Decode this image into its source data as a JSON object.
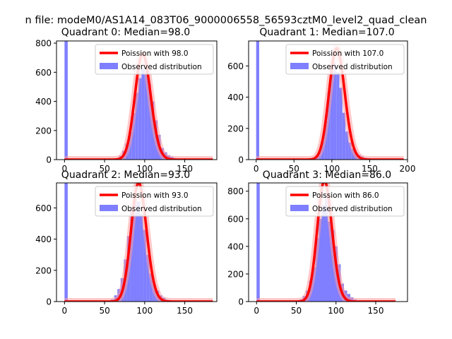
{
  "suptitle": "n file: modeM0/AS1A14_083T06_9000006558_56593cztM0_level2_quad_clean",
  "colors": {
    "hist": "#7f7fff",
    "line": "#ff0000",
    "lineHalo": "#ff9a9a",
    "axis": "#000000"
  },
  "chart_data": [
    {
      "type": "bar",
      "title": "Quadrant 0: Median=98.0",
      "median": 98.0,
      "xlim": [
        -10,
        190
      ],
      "ylim": [
        0,
        815
      ],
      "xticks": [
        0,
        50,
        100,
        150
      ],
      "yticks": [
        0,
        200,
        400,
        600,
        800
      ],
      "legend": [
        "Poission with 98.0",
        "Observed distribution"
      ],
      "legend_loc": "upper right",
      "bin_width": 4,
      "hist_x": [
        0,
        60,
        64,
        68,
        72,
        76,
        80,
        84,
        88,
        92,
        96,
        100,
        104,
        108,
        112,
        116,
        120,
        124,
        128,
        132,
        136,
        140,
        144
      ],
      "hist_y": [
        815,
        5,
        10,
        25,
        60,
        110,
        190,
        320,
        460,
        560,
        630,
        610,
        520,
        400,
        270,
        170,
        80,
        50,
        30,
        20,
        10,
        5,
        2
      ],
      "poisson": {
        "mean": 98.0,
        "x_range": [
          0,
          185
        ]
      }
    },
    {
      "type": "bar",
      "title": "Quadrant 1: Median=107.0",
      "median": 107.0,
      "xlim": [
        -10,
        200
      ],
      "ylim": [
        0,
        760
      ],
      "xticks": [
        0,
        50,
        100,
        150,
        200
      ],
      "yticks": [
        0,
        200,
        400,
        600
      ],
      "legend": [
        "Poission with 107.0",
        "Observed distribution"
      ],
      "legend_loc": "upper right",
      "bin_width": 4,
      "hist_x": [
        0,
        70,
        74,
        78,
        82,
        86,
        90,
        94,
        98,
        102,
        106,
        110,
        114,
        118,
        122,
        126,
        130,
        134,
        138,
        142,
        146,
        150,
        154
      ],
      "hist_y": [
        760,
        5,
        12,
        25,
        55,
        120,
        250,
        430,
        560,
        620,
        560,
        460,
        300,
        180,
        110,
        70,
        40,
        30,
        20,
        12,
        8,
        4,
        2
      ],
      "poisson": {
        "mean": 107.0,
        "x_range": [
          0,
          195
        ]
      }
    },
    {
      "type": "bar",
      "title": "Quadrant 2: Median=93.0",
      "median": 93.0,
      "xlim": [
        -10,
        190
      ],
      "ylim": [
        0,
        760
      ],
      "xticks": [
        0,
        50,
        100,
        150
      ],
      "yticks": [
        0,
        200,
        400,
        600
      ],
      "legend": [
        "Poission with 93.0",
        "Observed distribution"
      ],
      "legend_loc": "upper right",
      "bin_width": 4,
      "hist_x": [
        0,
        54,
        58,
        62,
        66,
        70,
        74,
        78,
        82,
        86,
        90,
        94,
        98,
        102,
        106,
        110,
        114,
        118,
        122,
        126,
        130,
        134,
        138
      ],
      "hist_y": [
        760,
        5,
        15,
        40,
        80,
        150,
        270,
        420,
        600,
        660,
        640,
        560,
        460,
        300,
        180,
        110,
        70,
        40,
        25,
        12,
        8,
        4,
        2
      ],
      "poisson": {
        "mean": 93.0,
        "x_range": [
          0,
          185
        ]
      }
    },
    {
      "type": "bar",
      "title": "Quadrant 3: Median=86.0",
      "median": 86.0,
      "xlim": [
        -10,
        190
      ],
      "ylim": [
        0,
        860
      ],
      "xticks": [
        0,
        50,
        100,
        150
      ],
      "yticks": [
        0,
        200,
        400,
        600,
        800
      ],
      "legend": [
        "Poission with 86.0",
        "Observed distribution"
      ],
      "legend_loc": "upper right",
      "bin_width": 4,
      "hist_x": [
        0,
        50,
        54,
        58,
        62,
        66,
        70,
        74,
        78,
        82,
        86,
        90,
        94,
        98,
        102,
        106,
        110,
        114,
        118,
        122,
        126,
        130
      ],
      "hist_y": [
        860,
        5,
        15,
        40,
        80,
        150,
        250,
        460,
        600,
        700,
        760,
        580,
        520,
        400,
        270,
        130,
        80,
        55,
        30,
        15,
        8,
        3
      ],
      "poisson": {
        "mean": 86.0,
        "x_range": [
          0,
          175
        ]
      }
    }
  ]
}
